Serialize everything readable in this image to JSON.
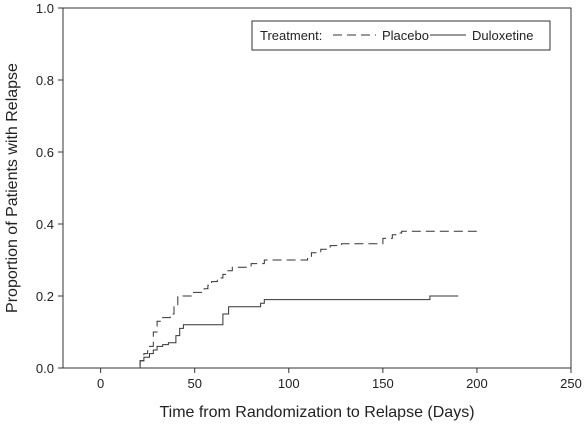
{
  "chart_data": {
    "type": "line",
    "step": true,
    "xlabel": "Time from Randomization to Relapse (Days)",
    "ylabel": "Proportion of Patients with Relapse",
    "xlim": [
      -20,
      250
    ],
    "ylim": [
      0,
      1.0
    ],
    "x_ticks": [
      0,
      50,
      100,
      150,
      200,
      250
    ],
    "y_ticks": [
      0.0,
      0.2,
      0.4,
      0.6,
      0.8,
      1.0
    ],
    "x_tick_labels": [
      "0",
      "50",
      "100",
      "150",
      "200",
      "250"
    ],
    "y_tick_labels": [
      "0.0",
      "0.2",
      "0.4",
      "0.6",
      "0.8",
      "1.0"
    ],
    "grid": false,
    "legend": {
      "title": "Treatment:",
      "placement": "top-right",
      "entries": [
        "Placebo",
        "Duloxetine"
      ]
    },
    "series": [
      {
        "name": "Placebo",
        "style": "dashed",
        "color": "#333333",
        "x": [
          0,
          21,
          23,
          25,
          26,
          28,
          30,
          33,
          37,
          39,
          41,
          45,
          49,
          55,
          57,
          59,
          62,
          65,
          67,
          70,
          75,
          80,
          87,
          95,
          110,
          112,
          117,
          122,
          128,
          140,
          150,
          155,
          158,
          160,
          202
        ],
        "y": [
          0.0,
          0.02,
          0.04,
          0.05,
          0.06,
          0.1,
          0.13,
          0.14,
          0.15,
          0.17,
          0.2,
          0.2,
          0.21,
          0.22,
          0.23,
          0.24,
          0.25,
          0.26,
          0.27,
          0.28,
          0.28,
          0.29,
          0.3,
          0.3,
          0.31,
          0.32,
          0.33,
          0.34,
          0.345,
          0.345,
          0.36,
          0.37,
          0.375,
          0.38,
          0.38
        ]
      },
      {
        "name": "Duloxetine",
        "style": "solid",
        "color": "#333333",
        "x": [
          0,
          21,
          23,
          26,
          28,
          30,
          33,
          36,
          40,
          42,
          44,
          50,
          65,
          68,
          85,
          87,
          175,
          190
        ],
        "y": [
          0.0,
          0.02,
          0.03,
          0.04,
          0.05,
          0.06,
          0.065,
          0.07,
          0.09,
          0.11,
          0.12,
          0.12,
          0.15,
          0.17,
          0.18,
          0.19,
          0.2,
          0.2
        ]
      }
    ]
  }
}
